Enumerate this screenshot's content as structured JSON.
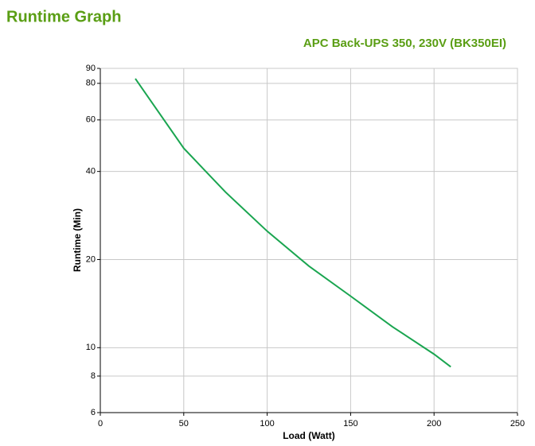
{
  "chart_data": {
    "type": "line",
    "title": "Runtime Graph",
    "subtitle": "APC Back-UPS 350, 230V (BK350EI)",
    "xlabel": "Load (Watt)",
    "ylabel": "Runtime (Min)",
    "x": [
      21,
      30,
      50,
      75,
      100,
      125,
      150,
      175,
      200,
      210
    ],
    "values": [
      83,
      70,
      48,
      34,
      25,
      19,
      15,
      11.8,
      9.5,
      8.6
    ],
    "color": "#1aa550",
    "xlim": [
      0,
      250
    ],
    "xticks": [
      0,
      50,
      100,
      150,
      200,
      250
    ],
    "ylim": [
      6,
      90
    ],
    "yticks": [
      6,
      8,
      10,
      20,
      40,
      60,
      80,
      90
    ],
    "yscale": "log",
    "grid": true
  }
}
